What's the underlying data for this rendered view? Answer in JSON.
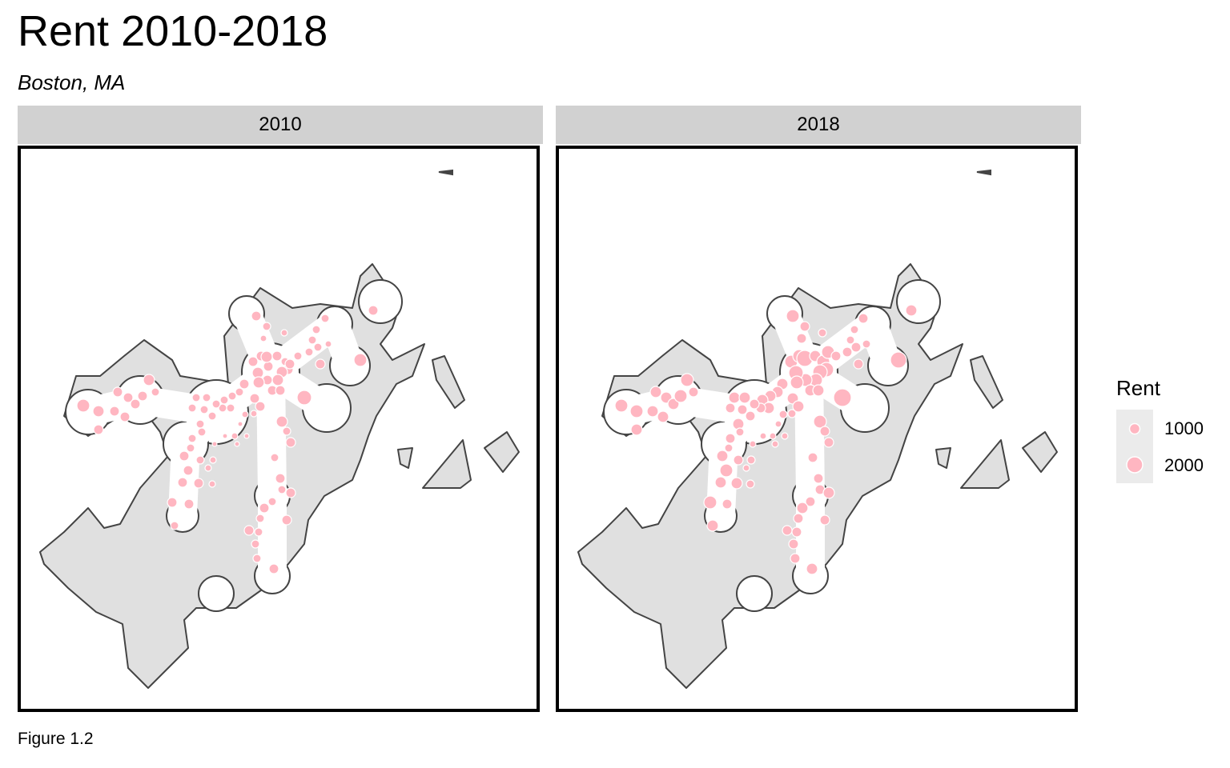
{
  "title": "Rent 2010-2018",
  "subtitle": "Boston, MA",
  "caption": "Figure 1.2",
  "facets": [
    {
      "label": "2010"
    },
    {
      "label": "2018"
    }
  ],
  "legend": {
    "title": "Rent",
    "entries": [
      {
        "label": "1000",
        "value": 1000
      },
      {
        "label": "2000",
        "value": 2000
      }
    ]
  },
  "colors": {
    "point": "#ffb6c1",
    "land": "#e0e0e0",
    "outline": "#444444",
    "strip": "#d1d1d1"
  }
}
